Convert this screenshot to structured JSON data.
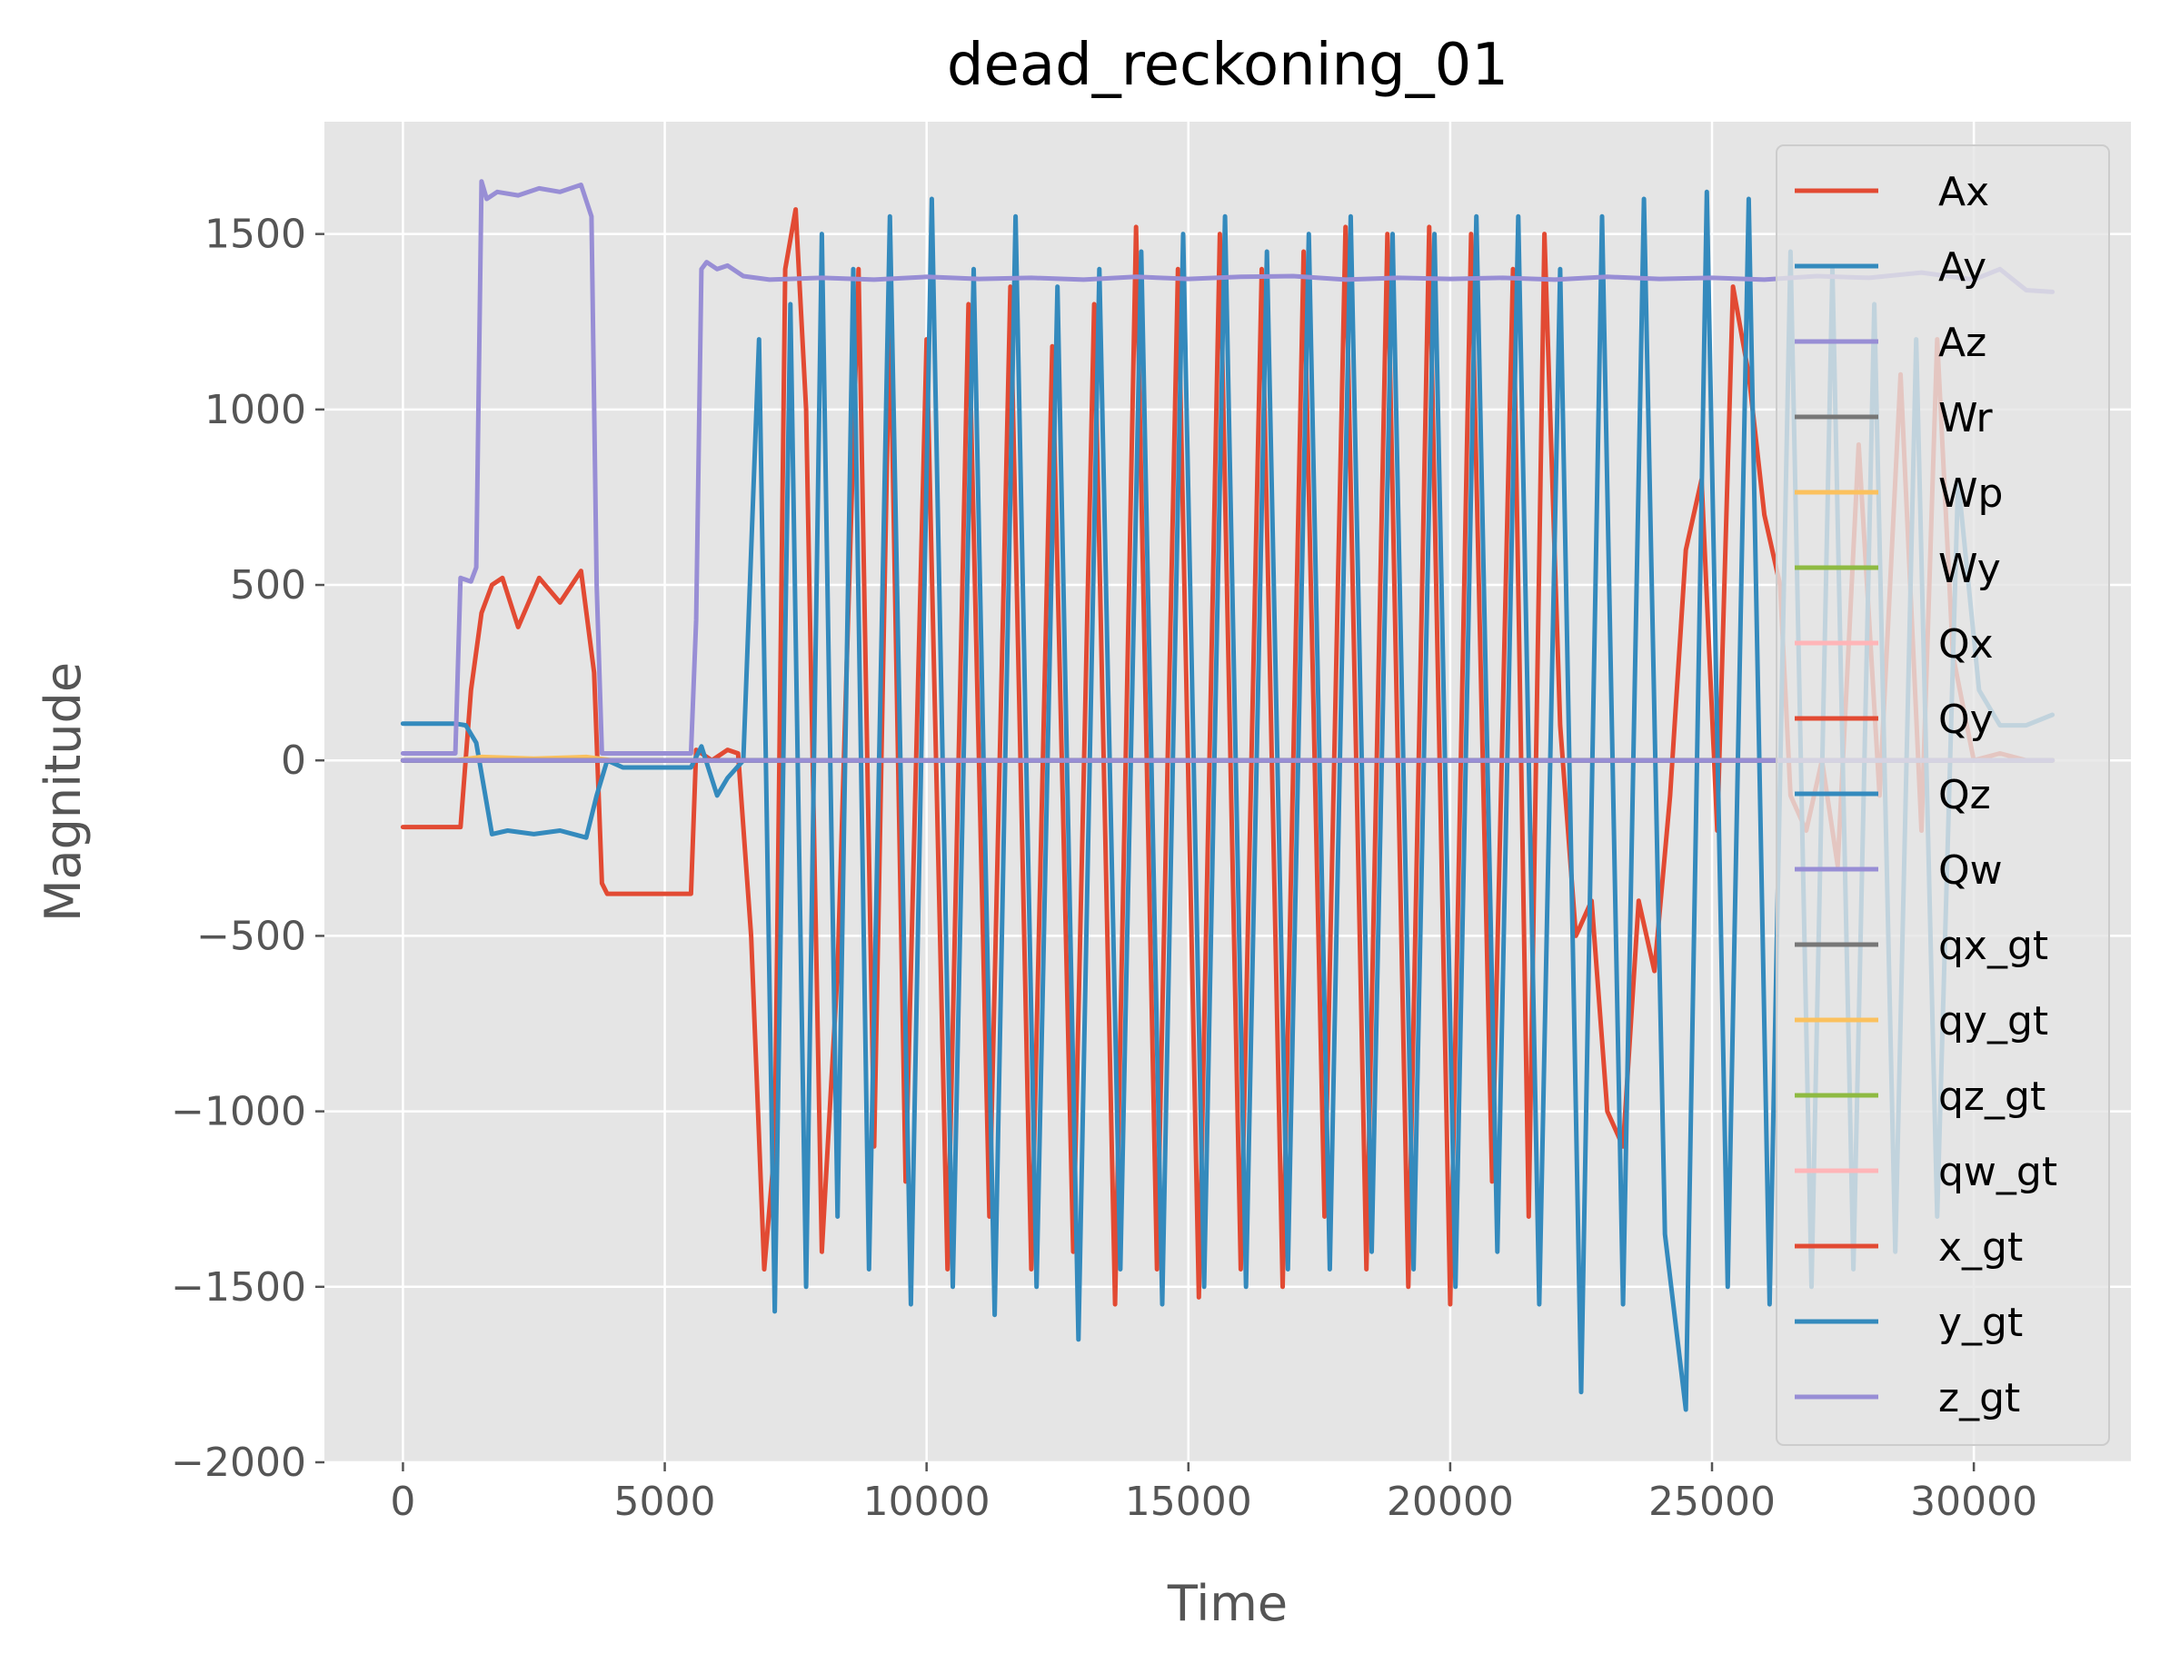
{
  "chart_data": {
    "type": "line",
    "title": "dead_reckoning_01",
    "xlabel": "Time",
    "ylabel": "Magnitude",
    "xlim": [
      -1500,
      33000
    ],
    "ylim": [
      -2000,
      1820
    ],
    "xticks": [
      0,
      5000,
      10000,
      15000,
      20000,
      25000,
      30000
    ],
    "xtick_labels": [
      "0",
      "5000",
      "10000",
      "15000",
      "20000",
      "25000",
      "30000"
    ],
    "yticks": [
      -2000,
      -1500,
      -1000,
      -500,
      0,
      500,
      1000,
      1500
    ],
    "ytick_labels": [
      "−2000",
      "−1500",
      "−1000",
      "−500",
      "0",
      "500",
      "1000",
      "1500"
    ],
    "grid": true,
    "legend_position": "upper-right",
    "series": [
      {
        "name": "Ax",
        "color": "#E24A33",
        "x": [
          0,
          1000,
          1100,
          1300,
          1500,
          1700,
          1900,
          2200,
          2600,
          3000,
          3400,
          3650,
          3800,
          3900,
          5500,
          5600,
          5900,
          6200,
          6400,
          6650,
          6900,
          7100,
          7300,
          7500,
          7700,
          8000,
          8300,
          8700,
          9000,
          9300,
          9600,
          10000,
          10400,
          10800,
          11200,
          11600,
          12000,
          12400,
          12800,
          13200,
          13600,
          14000,
          14400,
          14800,
          15200,
          15600,
          16000,
          16400,
          16800,
          17200,
          17600,
          18000,
          18400,
          18800,
          19200,
          19600,
          20000,
          20400,
          20800,
          21200,
          21500,
          21800,
          22100,
          22400,
          22700,
          23000,
          23300,
          23600,
          23900,
          24200,
          24500,
          24800,
          25100,
          25400,
          25700,
          26000,
          26300,
          26500,
          26800,
          27100,
          27400,
          27800,
          28200,
          28600,
          29000,
          29300,
          29600,
          30000,
          30500,
          31000,
          31500
        ],
        "y": [
          -190,
          -190,
          -190,
          200,
          420,
          500,
          520,
          380,
          520,
          450,
          540,
          250,
          -350,
          -380,
          -380,
          30,
          0,
          30,
          20,
          -500,
          -1450,
          -1100,
          1400,
          1570,
          1000,
          -1400,
          -600,
          1400,
          -1100,
          1300,
          -1200,
          1200,
          -1450,
          1300,
          -1300,
          1350,
          -1450,
          1180,
          -1400,
          1300,
          -1550,
          1520,
          -1450,
          1400,
          -1530,
          1500,
          -1450,
          1400,
          -1500,
          1450,
          -1300,
          1520,
          -1450,
          1500,
          -1500,
          1520,
          -1550,
          1500,
          -1200,
          1400,
          -1300,
          1500,
          100,
          -500,
          -400,
          -1000,
          -1100,
          -400,
          -600,
          -100,
          600,
          800,
          -200,
          1350,
          1100,
          700,
          500,
          -100,
          -200,
          0,
          -300,
          900,
          -100,
          1100,
          -200,
          1200,
          300,
          0,
          20,
          0,
          0
        ]
      },
      {
        "name": "Ay",
        "color": "#348ABD",
        "x": [
          0,
          1000,
          1200,
          1400,
          1700,
          2000,
          2500,
          3000,
          3500,
          3700,
          3900,
          4200,
          5500,
          5700,
          6000,
          6200,
          6500,
          6800,
          7100,
          7400,
          7700,
          8000,
          8300,
          8600,
          8900,
          9300,
          9700,
          10100,
          10500,
          10900,
          11300,
          11700,
          12100,
          12500,
          12900,
          13300,
          13700,
          14100,
          14500,
          14900,
          15300,
          15700,
          16100,
          16500,
          16900,
          17300,
          17700,
          18100,
          18500,
          18900,
          19300,
          19700,
          20100,
          20500,
          20900,
          21300,
          21700,
          22100,
          22500,
          22900,
          23300,
          23700,
          24100,
          24500,
          24900,
          25300,
          25700,
          26100,
          26500,
          26900,
          27300,
          27700,
          28100,
          28500,
          28900,
          29300,
          29700,
          30100,
          30500,
          31000,
          31500
        ],
        "y": [
          105,
          105,
          100,
          50,
          -210,
          -200,
          -210,
          -200,
          -220,
          -100,
          0,
          -20,
          -20,
          40,
          -100,
          -50,
          0,
          1200,
          -1570,
          1300,
          -1500,
          1500,
          -1300,
          1400,
          -1450,
          1550,
          -1550,
          1600,
          -1500,
          1400,
          -1580,
          1550,
          -1500,
          1350,
          -1650,
          1400,
          -1450,
          1450,
          -1550,
          1500,
          -1500,
          1550,
          -1500,
          1450,
          -1450,
          1500,
          -1450,
          1550,
          -1400,
          1500,
          -1450,
          1500,
          -1500,
          1550,
          -1400,
          1550,
          -1550,
          1400,
          -1800,
          1550,
          -1550,
          1600,
          -1350,
          -1850,
          1620,
          -1500,
          1600,
          -1550,
          1450,
          -1500,
          1400,
          -1450,
          1300,
          -1400,
          1200,
          -1300,
          800,
          200,
          100,
          100,
          130
        ]
      },
      {
        "name": "Az",
        "color": "#988ED5",
        "x": [
          0,
          1000,
          1100,
          1300,
          1400,
          1500,
          1600,
          1800,
          2200,
          2600,
          3000,
          3400,
          3600,
          3700,
          3800,
          5500,
          5600,
          5700,
          5800,
          6000,
          6200,
          6500,
          7000,
          8000,
          9000,
          10000,
          11000,
          12000,
          13000,
          14000,
          15000,
          16000,
          17000,
          18000,
          19000,
          20000,
          21000,
          22000,
          23000,
          24000,
          25000,
          26000,
          27000,
          28000,
          29000,
          29500,
          30000,
          30500,
          31000,
          31500
        ],
        "y": [
          20,
          20,
          520,
          510,
          550,
          1650,
          1600,
          1620,
          1610,
          1630,
          1620,
          1640,
          1550,
          500,
          20,
          20,
          400,
          1400,
          1420,
          1400,
          1410,
          1380,
          1370,
          1375,
          1370,
          1378,
          1372,
          1375,
          1370,
          1378,
          1372,
          1378,
          1380,
          1370,
          1375,
          1372,
          1375,
          1370,
          1378,
          1372,
          1375,
          1370,
          1380,
          1375,
          1390,
          1380,
          1370,
          1400,
          1340,
          1335
        ]
      },
      {
        "name": "Wr",
        "color": "#777777",
        "x": [
          0,
          31500
        ],
        "y": [
          0,
          0
        ]
      },
      {
        "name": "Wp",
        "color": "#FBC15E",
        "x": [
          0,
          1000,
          1500,
          2500,
          3500,
          4000,
          31500
        ],
        "y": [
          0,
          0,
          10,
          5,
          10,
          0,
          0
        ]
      },
      {
        "name": "Wy",
        "color": "#8EBA42",
        "x": [
          0,
          31500
        ],
        "y": [
          0,
          0
        ]
      },
      {
        "name": "Qx",
        "color": "#FFB5B8",
        "x": [
          0,
          31500
        ],
        "y": [
          0,
          0
        ]
      },
      {
        "name": "Qy",
        "color": "#E24A33",
        "x": [
          0,
          31500
        ],
        "y": [
          0,
          0
        ]
      },
      {
        "name": "Qz",
        "color": "#348ABD",
        "x": [
          0,
          31500
        ],
        "y": [
          0,
          0
        ]
      },
      {
        "name": "Qw",
        "color": "#988ED5",
        "x": [
          0,
          31500
        ],
        "y": [
          0,
          0
        ]
      },
      {
        "name": "qx_gt",
        "color": "#777777",
        "x": [
          0,
          31500
        ],
        "y": [
          0,
          0
        ]
      },
      {
        "name": "qy_gt",
        "color": "#FBC15E",
        "x": [
          0,
          31500
        ],
        "y": [
          0,
          0
        ]
      },
      {
        "name": "qz_gt",
        "color": "#8EBA42",
        "x": [
          0,
          31500
        ],
        "y": [
          0,
          0
        ]
      },
      {
        "name": "qw_gt",
        "color": "#FFB5B8",
        "x": [
          0,
          31500
        ],
        "y": [
          0,
          0
        ]
      },
      {
        "name": "x_gt",
        "color": "#E24A33",
        "x": [
          0,
          31500
        ],
        "y": [
          0,
          0
        ]
      },
      {
        "name": "y_gt",
        "color": "#348ABD",
        "x": [
          0,
          31500
        ],
        "y": [
          0,
          0
        ]
      },
      {
        "name": "z_gt",
        "color": "#988ED5",
        "x": [
          0,
          31500
        ],
        "y": [
          0,
          0
        ]
      }
    ]
  }
}
